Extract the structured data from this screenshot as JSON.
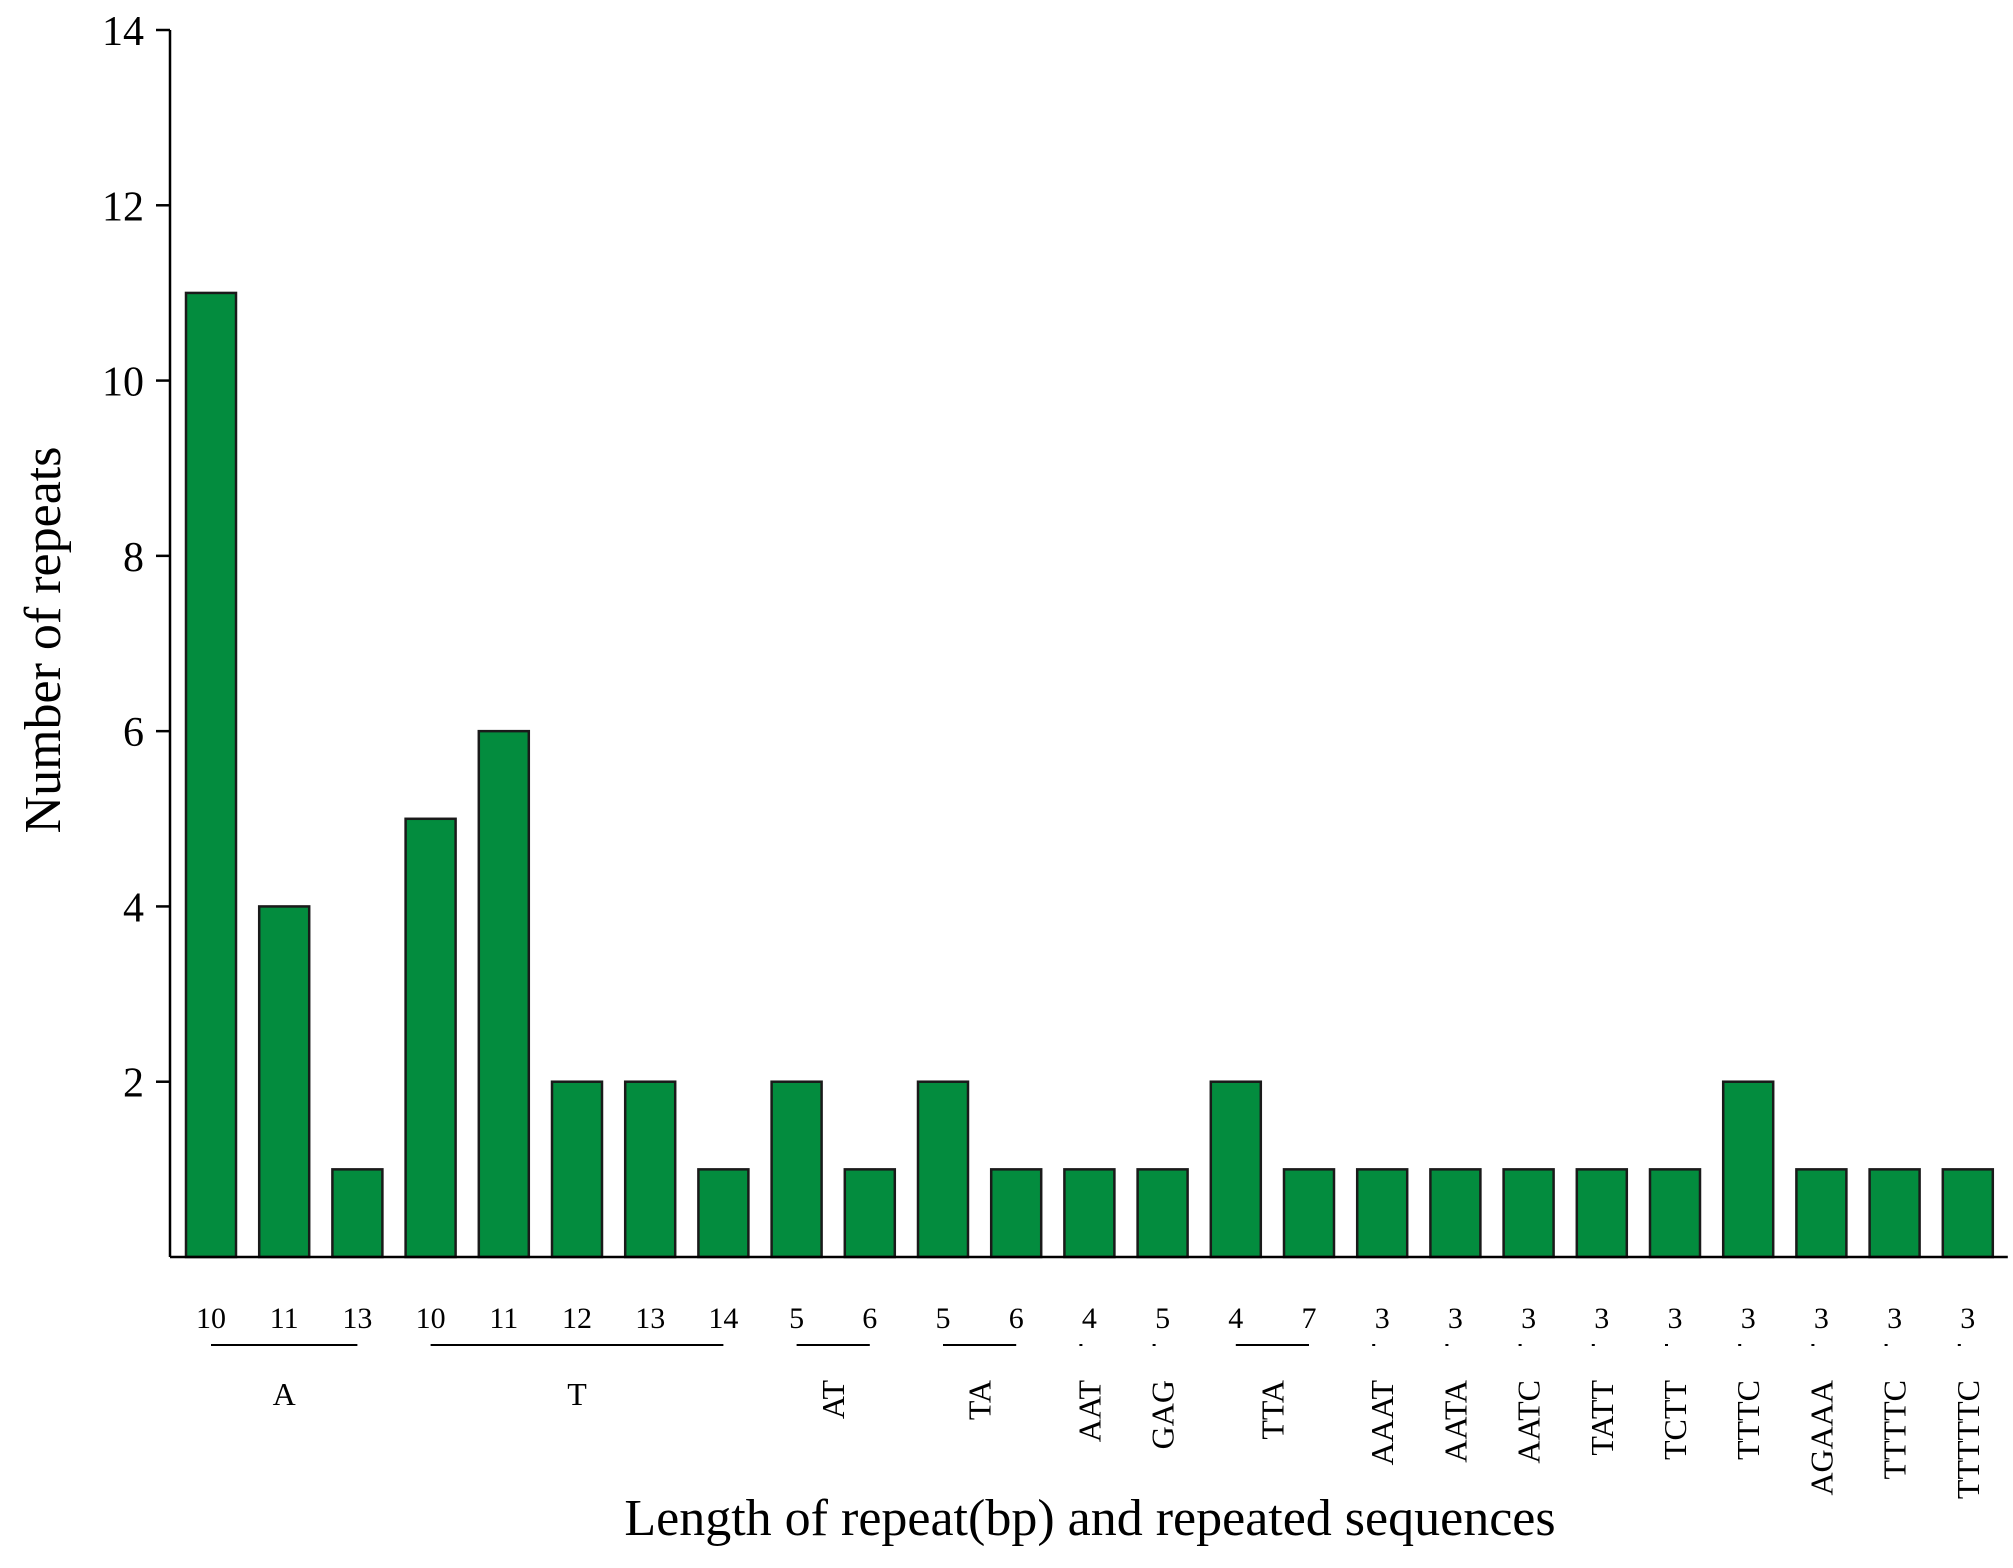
{
  "chart_data": {
    "type": "bar",
    "title": "",
    "xlabel": "Length of repeat(bp) and repeated sequences",
    "ylabel": "Number of repeats",
    "ylim": [
      0,
      14
    ],
    "yticks": [
      2,
      4,
      6,
      8,
      10,
      12,
      14
    ],
    "grid": false,
    "bar_color": "#038c3e",
    "bar_edge_color": "#1a1a1a",
    "groups": [
      {
        "label": "A",
        "lengths": [
          "10",
          "11",
          "13"
        ],
        "values": [
          11,
          4,
          1
        ]
      },
      {
        "label": "T",
        "lengths": [
          "10",
          "11",
          "12",
          "13",
          "14"
        ],
        "values": [
          5,
          6,
          2,
          2,
          1
        ]
      },
      {
        "label": "AT",
        "lengths": [
          "5",
          "6"
        ],
        "values": [
          2,
          1
        ]
      },
      {
        "label": "TA",
        "lengths": [
          "5",
          "6"
        ],
        "values": [
          2,
          1
        ]
      },
      {
        "label": "AAT",
        "lengths": [
          "4"
        ],
        "values": [
          1
        ]
      },
      {
        "label": "GAG",
        "lengths": [
          "5"
        ],
        "values": [
          1
        ]
      },
      {
        "label": "TTA",
        "lengths": [
          "4",
          "7"
        ],
        "values": [
          2,
          1
        ]
      },
      {
        "label": "AAAT",
        "lengths": [
          "3"
        ],
        "values": [
          1
        ]
      },
      {
        "label": "AATA",
        "lengths": [
          "3"
        ],
        "values": [
          1
        ]
      },
      {
        "label": "AATC",
        "lengths": [
          "3"
        ],
        "values": [
          1
        ]
      },
      {
        "label": "TATT",
        "lengths": [
          "3"
        ],
        "values": [
          1
        ]
      },
      {
        "label": "TCTT",
        "lengths": [
          "3"
        ],
        "values": [
          1
        ]
      },
      {
        "label": "TTTC",
        "lengths": [
          "3"
        ],
        "values": [
          2
        ]
      },
      {
        "label": "AGAAA",
        "lengths": [
          "3"
        ],
        "values": [
          1
        ]
      },
      {
        "label": "TTTTC",
        "lengths": [
          "3"
        ],
        "values": [
          1
        ]
      },
      {
        "label": "TTTTTC",
        "lengths": [
          "3"
        ],
        "values": [
          1
        ]
      }
    ]
  }
}
